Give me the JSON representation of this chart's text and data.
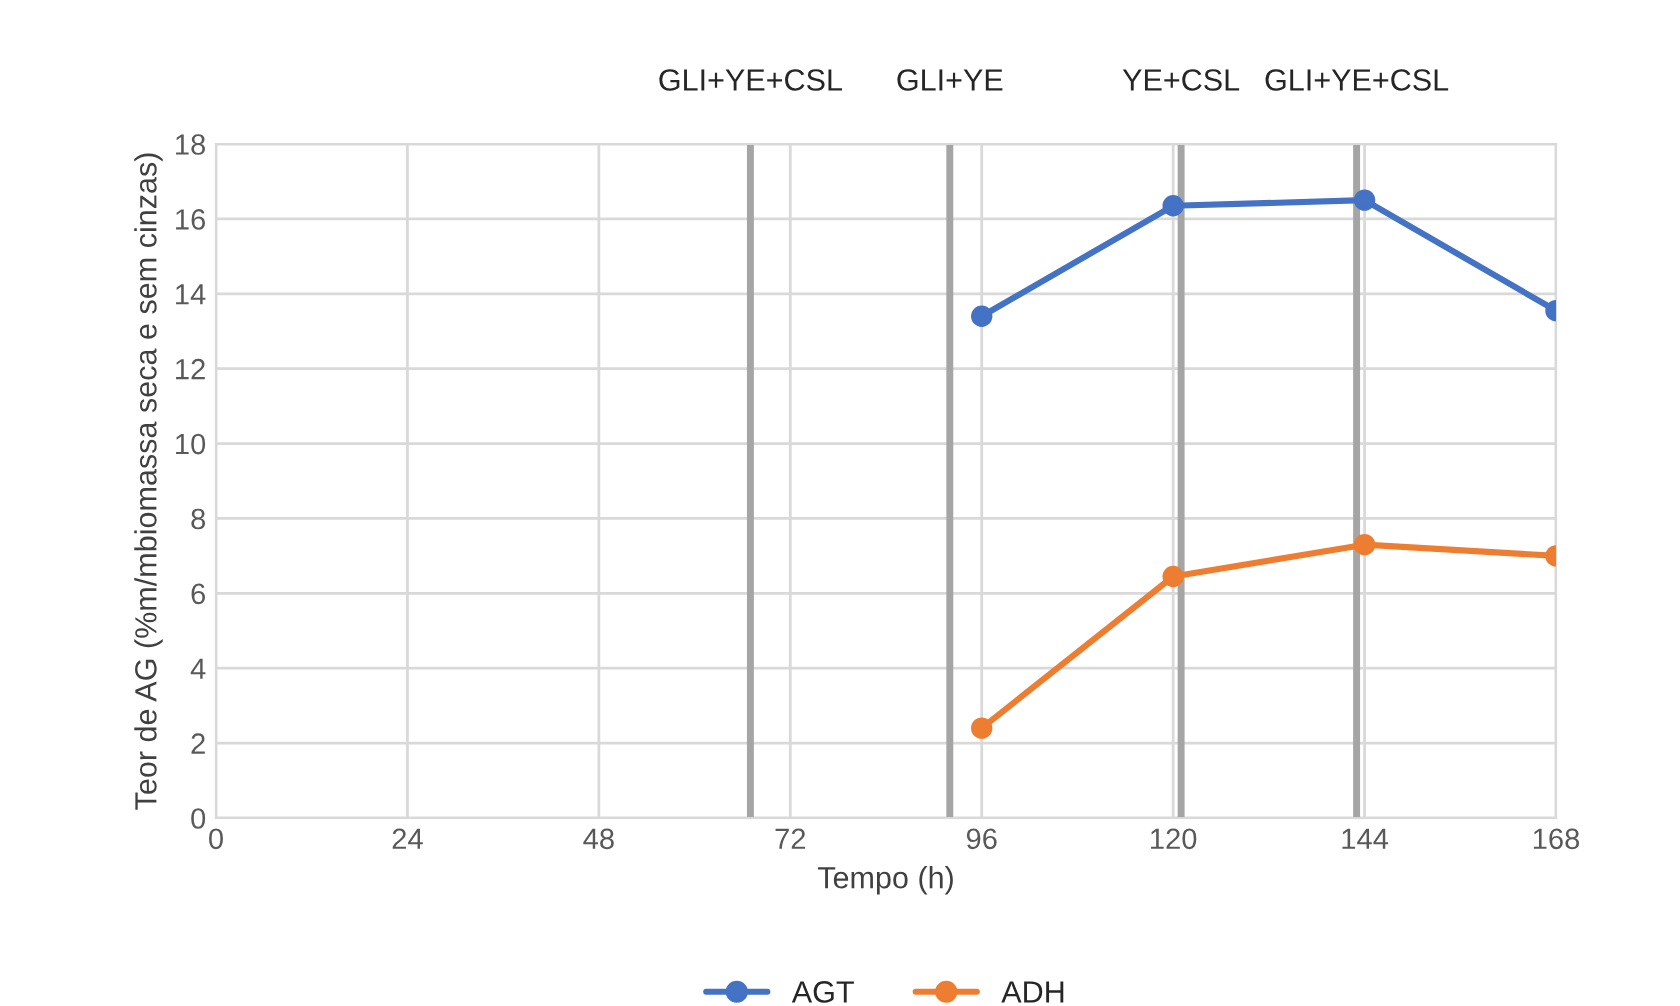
{
  "chart_data": {
    "type": "line",
    "xlabel": "Tempo (h)",
    "ylabel": "Teor de AG (%m/mbiomassa seca e sem cinzas)",
    "x": [
      96,
      120,
      144,
      168
    ],
    "series": [
      {
        "name": "AGT",
        "color": "#4472c4",
        "values": [
          13.4,
          16.35,
          16.5,
          13.55
        ]
      },
      {
        "name": "ADH",
        "color": "#ed7d31",
        "values": [
          2.4,
          6.45,
          7.3,
          7.0
        ]
      }
    ],
    "xlim": [
      0,
      168
    ],
    "xticks": [
      0,
      24,
      48,
      72,
      96,
      120,
      144,
      168
    ],
    "ylim": [
      0,
      18
    ],
    "yticks": [
      0,
      2,
      4,
      6,
      8,
      10,
      12,
      14,
      16,
      18
    ],
    "ref_lines": [
      {
        "axis": "x",
        "value": 67,
        "label": "GLI+YE+CSL",
        "color": "#a5a5a5"
      },
      {
        "axis": "x",
        "value": 92,
        "label": "GLI+YE",
        "color": "#a5a5a5"
      },
      {
        "axis": "x",
        "value": 121,
        "label": "YE+CSL",
        "color": "#a5a5a5"
      },
      {
        "axis": "x",
        "value": 143,
        "label": "GLI+YE+CSL",
        "color": "#a5a5a5"
      }
    ],
    "grid": true,
    "legend": "bottom",
    "marker": "circle",
    "line_style": "solid"
  }
}
